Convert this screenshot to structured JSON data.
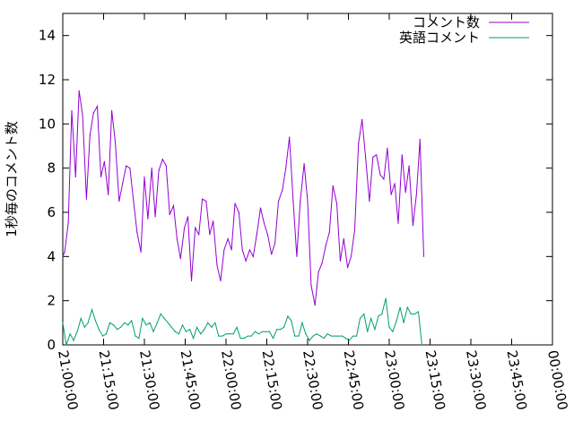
{
  "chart_data": {
    "type": "line",
    "ylabel": "1秒毎のコメント数",
    "ylim": [
      0,
      15
    ],
    "y_ticks": [
      "0",
      "2",
      "4",
      "6",
      "8",
      "10",
      "12",
      "14"
    ],
    "y_tick_values": [
      0,
      2,
      4,
      6,
      8,
      10,
      12,
      14
    ],
    "x_ticks": [
      "21:00:00",
      "21:15:00",
      "21:30:00",
      "21:45:00",
      "22:00:00",
      "22:15:00",
      "22:30:00",
      "22:45:00",
      "23:00:00",
      "23:15:00",
      "23:30:00",
      "23:45:00",
      "00:00:00"
    ],
    "x_tick_minutes": [
      0,
      15,
      30,
      45,
      60,
      75,
      90,
      105,
      120,
      135,
      150,
      165,
      180
    ],
    "xlim_minutes": [
      0,
      180
    ],
    "grid": false,
    "legend_position": "top-right",
    "series": [
      {
        "name": "コメント数",
        "color": "#9400d3",
        "values": [
          [
            0.0,
            4.0
          ],
          [
            0.7,
            4.2
          ],
          [
            2.0,
            5.5
          ],
          [
            3.3,
            10.6
          ],
          [
            4.7,
            7.6
          ],
          [
            6.0,
            11.5
          ],
          [
            7.3,
            10.4
          ],
          [
            8.7,
            6.6
          ],
          [
            10.0,
            9.5
          ],
          [
            11.3,
            10.5
          ],
          [
            12.7,
            10.8
          ],
          [
            14.0,
            7.6
          ],
          [
            15.3,
            8.3
          ],
          [
            16.7,
            6.8
          ],
          [
            18.0,
            10.6
          ],
          [
            19.3,
            9.2
          ],
          [
            20.7,
            6.5
          ],
          [
            22.0,
            7.3
          ],
          [
            23.3,
            8.1
          ],
          [
            24.7,
            8.0
          ],
          [
            26.0,
            6.5
          ],
          [
            27.3,
            5.1
          ],
          [
            28.7,
            4.2
          ],
          [
            30.0,
            7.6
          ],
          [
            31.3,
            5.7
          ],
          [
            32.7,
            8.0
          ],
          [
            34.0,
            5.8
          ],
          [
            35.3,
            7.9
          ],
          [
            36.7,
            8.4
          ],
          [
            38.0,
            8.1
          ],
          [
            39.3,
            5.9
          ],
          [
            40.7,
            6.3
          ],
          [
            42.0,
            4.8
          ],
          [
            43.3,
            3.9
          ],
          [
            44.7,
            5.3
          ],
          [
            46.0,
            5.8
          ],
          [
            47.3,
            2.9
          ],
          [
            48.7,
            5.3
          ],
          [
            50.0,
            5.0
          ],
          [
            51.3,
            6.6
          ],
          [
            52.7,
            6.5
          ],
          [
            54.0,
            5.0
          ],
          [
            55.3,
            5.6
          ],
          [
            56.7,
            3.6
          ],
          [
            58.0,
            2.9
          ],
          [
            59.3,
            4.3
          ],
          [
            60.7,
            4.8
          ],
          [
            62.0,
            4.3
          ],
          [
            63.3,
            6.4
          ],
          [
            64.7,
            6.0
          ],
          [
            66.0,
            4.3
          ],
          [
            67.3,
            3.8
          ],
          [
            68.7,
            4.3
          ],
          [
            70.0,
            4.0
          ],
          [
            71.3,
            5.0
          ],
          [
            72.7,
            6.2
          ],
          [
            74.0,
            5.5
          ],
          [
            75.3,
            5.0
          ],
          [
            76.7,
            4.1
          ],
          [
            78.0,
            4.6
          ],
          [
            79.3,
            6.5
          ],
          [
            80.7,
            7.0
          ],
          [
            82.0,
            8.0
          ],
          [
            83.3,
            9.4
          ],
          [
            84.7,
            6.5
          ],
          [
            86.0,
            4.0
          ],
          [
            87.3,
            6.5
          ],
          [
            88.7,
            8.2
          ],
          [
            90.0,
            6.5
          ],
          [
            91.3,
            2.7
          ],
          [
            92.7,
            1.8
          ],
          [
            94.0,
            3.3
          ],
          [
            95.3,
            3.7
          ],
          [
            96.7,
            4.5
          ],
          [
            98.0,
            5.1
          ],
          [
            99.3,
            7.2
          ],
          [
            100.7,
            6.4
          ],
          [
            102.0,
            3.8
          ],
          [
            103.3,
            4.8
          ],
          [
            104.7,
            3.5
          ],
          [
            106.0,
            4.0
          ],
          [
            107.3,
            5.2
          ],
          [
            108.7,
            9.1
          ],
          [
            110.0,
            10.2
          ],
          [
            111.3,
            8.5
          ],
          [
            112.7,
            6.5
          ],
          [
            114.0,
            8.5
          ],
          [
            115.3,
            8.6
          ],
          [
            116.7,
            7.7
          ],
          [
            118.0,
            7.5
          ],
          [
            119.3,
            8.9
          ],
          [
            120.7,
            6.8
          ],
          [
            122.0,
            7.3
          ],
          [
            123.3,
            5.5
          ],
          [
            124.7,
            8.6
          ],
          [
            126.0,
            6.9
          ],
          [
            127.3,
            8.1
          ],
          [
            128.7,
            5.4
          ],
          [
            130.0,
            6.8
          ],
          [
            131.3,
            9.3
          ],
          [
            132.7,
            4.0
          ]
        ]
      },
      {
        "name": "英語コメント",
        "color": "#009e73",
        "values": [
          [
            0.0,
            1.0
          ],
          [
            1.3,
            0.0
          ],
          [
            2.7,
            0.5
          ],
          [
            4.0,
            0.2
          ],
          [
            5.3,
            0.6
          ],
          [
            6.7,
            1.2
          ],
          [
            8.0,
            0.8
          ],
          [
            9.3,
            1.0
          ],
          [
            10.7,
            1.6
          ],
          [
            12.0,
            1.1
          ],
          [
            13.3,
            0.7
          ],
          [
            14.7,
            0.4
          ],
          [
            16.0,
            0.5
          ],
          [
            17.3,
            1.0
          ],
          [
            18.7,
            0.9
          ],
          [
            20.0,
            0.7
          ],
          [
            21.3,
            0.8
          ],
          [
            22.7,
            1.0
          ],
          [
            24.0,
            0.9
          ],
          [
            25.3,
            1.1
          ],
          [
            26.7,
            0.4
          ],
          [
            28.0,
            0.3
          ],
          [
            29.3,
            1.2
          ],
          [
            30.7,
            0.9
          ],
          [
            32.0,
            1.0
          ],
          [
            33.3,
            0.6
          ],
          [
            34.7,
            1.0
          ],
          [
            36.0,
            1.4
          ],
          [
            37.3,
            1.2
          ],
          [
            38.7,
            1.0
          ],
          [
            40.0,
            0.8
          ],
          [
            41.3,
            0.6
          ],
          [
            42.7,
            0.5
          ],
          [
            44.0,
            0.9
          ],
          [
            45.3,
            0.6
          ],
          [
            46.7,
            0.7
          ],
          [
            48.0,
            0.3
          ],
          [
            49.3,
            0.8
          ],
          [
            50.7,
            0.5
          ],
          [
            52.0,
            0.7
          ],
          [
            53.3,
            1.0
          ],
          [
            54.7,
            0.8
          ],
          [
            56.0,
            1.0
          ],
          [
            57.3,
            0.4
          ],
          [
            58.7,
            0.4
          ],
          [
            60.0,
            0.5
          ],
          [
            61.3,
            0.5
          ],
          [
            62.7,
            0.5
          ],
          [
            64.0,
            0.8
          ],
          [
            65.3,
            0.3
          ],
          [
            66.7,
            0.3
          ],
          [
            68.0,
            0.4
          ],
          [
            69.3,
            0.4
          ],
          [
            70.7,
            0.6
          ],
          [
            72.0,
            0.5
          ],
          [
            73.3,
            0.6
          ],
          [
            74.7,
            0.6
          ],
          [
            76.0,
            0.6
          ],
          [
            77.3,
            0.3
          ],
          [
            78.7,
            0.7
          ],
          [
            80.0,
            0.7
          ],
          [
            81.3,
            0.8
          ],
          [
            82.7,
            1.3
          ],
          [
            84.0,
            1.1
          ],
          [
            85.3,
            0.4
          ],
          [
            86.7,
            0.4
          ],
          [
            88.0,
            1.0
          ],
          [
            89.3,
            0.5
          ],
          [
            90.7,
            0.2
          ],
          [
            92.0,
            0.4
          ],
          [
            93.3,
            0.5
          ],
          [
            94.7,
            0.4
          ],
          [
            96.0,
            0.3
          ],
          [
            97.3,
            0.5
          ],
          [
            98.7,
            0.4
          ],
          [
            100.0,
            0.4
          ],
          [
            101.3,
            0.4
          ],
          [
            102.7,
            0.4
          ],
          [
            104.0,
            0.3
          ],
          [
            105.3,
            0.2
          ],
          [
            106.7,
            0.4
          ],
          [
            108.0,
            0.4
          ],
          [
            109.3,
            1.2
          ],
          [
            110.7,
            1.4
          ],
          [
            112.0,
            0.6
          ],
          [
            113.3,
            1.2
          ],
          [
            114.7,
            0.7
          ],
          [
            116.0,
            1.3
          ],
          [
            117.3,
            1.4
          ],
          [
            118.7,
            2.1
          ],
          [
            120.0,
            0.8
          ],
          [
            121.3,
            0.6
          ],
          [
            122.7,
            1.1
          ],
          [
            124.0,
            1.7
          ],
          [
            125.3,
            1.0
          ],
          [
            126.7,
            1.7
          ],
          [
            128.0,
            1.4
          ],
          [
            129.3,
            1.4
          ],
          [
            130.7,
            1.5
          ],
          [
            132.0,
            0.0
          ]
        ]
      }
    ]
  }
}
